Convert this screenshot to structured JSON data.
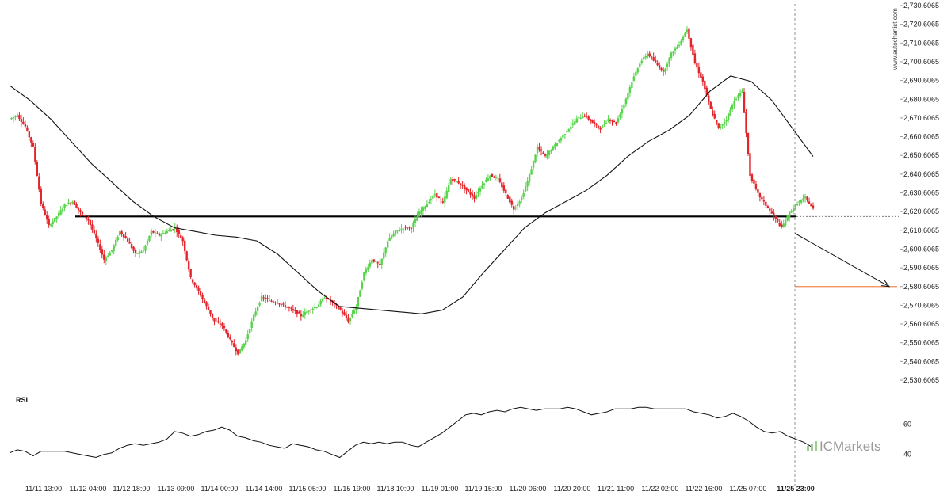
{
  "chart_data": {
    "type": "candlestick",
    "watermark": "www.autochartist.com",
    "brand": "ICMarkets",
    "y_ticks": [
      "2,730.6065",
      "2,720.6065",
      "2,710.6065",
      "2,700.6065",
      "2,690.6065",
      "2,680.6065",
      "2,670.6065",
      "2,660.6065",
      "2,650.6065",
      "2,640.6065",
      "2,630.6065",
      "2,620.6065",
      "2,610.6065",
      "2,600.6065",
      "2,590.6065",
      "2,580.6065",
      "2,570.6065",
      "2,560.6065",
      "2,550.6065",
      "2,540.6065",
      "2,530.6065"
    ],
    "ylim": [
      2530.6065,
      2730.6065
    ],
    "x_ticks": [
      "11/11 13:00",
      "11/12 04:00",
      "11/12 18:00",
      "11/13 09:00",
      "11/14 00:00",
      "11/14 14:00",
      "11/15 05:00",
      "11/15 19:00",
      "11/18 10:00",
      "11/19 01:00",
      "11/19 15:00",
      "11/20 06:00",
      "11/20 20:00",
      "11/21 11:00",
      "11/22 02:00",
      "11/22 16:00",
      "11/25 07:00",
      "11/25 23:00"
    ],
    "current_time_label": "11/25 23:00",
    "support_level": 2618,
    "target_level": 2580.6,
    "last_price": 2618,
    "projection": {
      "from": 2609,
      "to": 2580.6
    },
    "price_path": [
      2670,
      2672,
      2666,
      2655,
      2625,
      2613,
      2618,
      2624,
      2626,
      2620,
      2616,
      2606,
      2595,
      2600,
      2610,
      2605,
      2598,
      2600,
      2610,
      2608,
      2610,
      2612,
      2605,
      2585,
      2578,
      2570,
      2562,
      2560,
      2552,
      2545,
      2552,
      2565,
      2575,
      2573,
      2572,
      2570,
      2568,
      2565,
      2568,
      2570,
      2575,
      2572,
      2568,
      2562,
      2570,
      2588,
      2595,
      2592,
      2605,
      2610,
      2612,
      2612,
      2620,
      2625,
      2630,
      2625,
      2638,
      2636,
      2632,
      2628,
      2635,
      2640,
      2638,
      2630,
      2622,
      2628,
      2640,
      2655,
      2650,
      2655,
      2660,
      2665,
      2670,
      2672,
      2668,
      2665,
      2670,
      2668,
      2678,
      2690,
      2700,
      2705,
      2700,
      2695,
      2705,
      2710,
      2718,
      2700,
      2690,
      2675,
      2665,
      2670,
      2680,
      2685,
      2640,
      2630,
      2624,
      2618,
      2612,
      2620,
      2625,
      2628,
      2622
    ],
    "ma_path": [
      2688,
      2680,
      2670,
      2658,
      2646,
      2636,
      2626,
      2618,
      2612,
      2610,
      2608,
      2607,
      2605,
      2598,
      2588,
      2578,
      2570,
      2569,
      2568,
      2567,
      2566,
      2568,
      2575,
      2588,
      2600,
      2612,
      2620,
      2626,
      2632,
      2640,
      2650,
      2658,
      2664,
      2672,
      2685,
      2693,
      2690,
      2680,
      2665,
      2650
    ],
    "rsi": {
      "label": "RSI",
      "levels": [
        60,
        40
      ],
      "values": [
        41,
        43,
        42,
        39,
        42,
        42,
        42,
        42,
        41,
        40,
        39,
        38,
        40,
        41,
        44,
        46,
        47,
        46,
        47,
        48,
        50,
        55,
        54,
        52,
        53,
        55,
        56,
        58,
        56,
        52,
        51,
        49,
        48,
        46,
        45,
        44,
        47,
        46,
        45,
        43,
        42,
        40,
        38,
        42,
        46,
        48,
        47,
        48,
        47,
        48,
        48,
        46,
        45,
        48,
        51,
        54,
        58,
        62,
        66,
        67,
        66,
        68,
        69,
        68,
        70,
        71,
        70,
        69,
        70,
        70,
        70,
        71,
        70,
        68,
        66,
        67,
        68,
        70,
        70,
        70,
        71,
        71,
        70,
        70,
        70,
        70,
        70,
        68,
        67,
        66,
        64,
        65,
        67,
        65,
        62,
        58,
        55,
        54,
        55,
        52,
        50,
        48,
        45
      ]
    }
  }
}
